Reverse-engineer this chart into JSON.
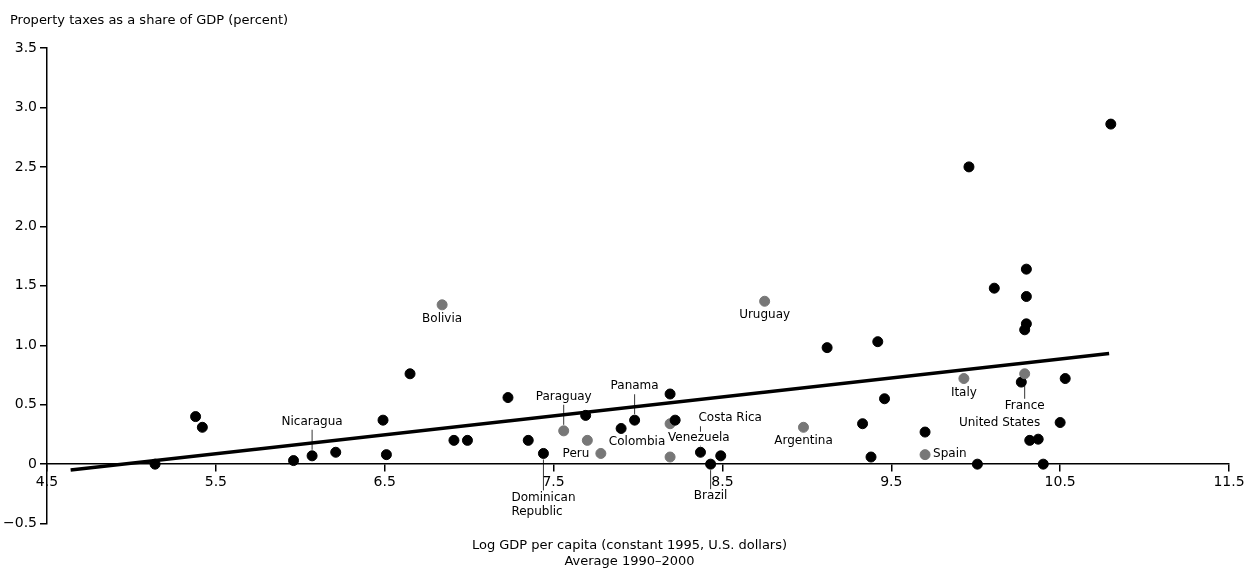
{
  "chart_data": {
    "type": "scatter",
    "ylabel": "Property taxes as a share of GDP (percent)",
    "xlabel": "Log GDP per capita (constant 1995, U.S. dollars)",
    "xlim": [
      4.5,
      11.5
    ],
    "xticks": [
      4.5,
      5.5,
      6.5,
      7.5,
      8.5,
      9.5,
      10.5,
      11.5
    ],
    "ylim": [
      -0.5,
      3.5
    ],
    "yticks": [
      {
        "value": -0.5,
        "label": "−0.5"
      },
      0,
      {
        "value": 0.5,
        "label": "0.5"
      },
      {
        "value": 1,
        "label": "1.0"
      },
      {
        "value": 1.5,
        "label": "1.5"
      },
      {
        "value": 2,
        "label": "2.0"
      },
      {
        "value": 2.5,
        "label": "2.5"
      },
      {
        "value": 3,
        "label": "3.0"
      },
      {
        "value": 3.5,
        "label": "3.5"
      }
    ],
    "grid": false,
    "legend": false,
    "series": [
      {
        "marker": "circle",
        "x": [
          5.14,
          5.38,
          5.42,
          5.96,
          6.07,
          6.21,
          6.49,
          6.51,
          6.65,
          6.84,
          6.91,
          6.99,
          7.23,
          7.35,
          7.44,
          7.56,
          7.69,
          7.7,
          7.78,
          7.9,
          7.98,
          8.19,
          8.19,
          8.22,
          8.19,
          8.37,
          8.43,
          8.49,
          8.75,
          8.98,
          9.12,
          9.33,
          9.38,
          9.42,
          9.46,
          9.7,
          9.7,
          9.93,
          9.96,
          10.01,
          10.11,
          10.27,
          10.29,
          10.29,
          10.3,
          10.3,
          10.3,
          10.32,
          10.37,
          10.4,
          10.5,
          10.53,
          10.8
        ],
        "values": [
          0.0,
          0.4,
          0.31,
          0.03,
          0.07,
          0.1,
          0.37,
          0.08,
          0.76,
          1.34,
          0.2,
          0.2,
          0.56,
          0.2,
          0.09,
          0.28,
          0.41,
          0.2,
          0.09,
          0.3,
          0.37,
          0.06,
          0.34,
          0.37,
          0.59,
          0.1,
          0.0,
          0.07,
          1.37,
          0.31,
          0.98,
          0.34,
          0.06,
          1.03,
          0.55,
          0.27,
          0.08,
          0.72,
          2.5,
          0.0,
          1.48,
          0.69,
          0.76,
          1.13,
          1.18,
          1.41,
          1.64,
          0.2,
          0.21,
          0.0,
          0.35,
          0.72,
          2.86
        ],
        "colors": [
          "#000000",
          "#000000",
          "#000000",
          "#000000",
          "#000000",
          "#000000",
          "#000000",
          "#000000",
          "#000000",
          "#777777",
          "#000000",
          "#000000",
          "#000000",
          "#000000",
          "#000000",
          "#777777",
          "#000000",
          "#777777",
          "#777777",
          "#000000",
          "#000000",
          "#777777",
          "#777777",
          "#000000",
          "#000000",
          "#000000",
          "#000000",
          "#000000",
          "#777777",
          "#777777",
          "#000000",
          "#000000",
          "#000000",
          "#000000",
          "#000000",
          "#000000",
          "#777777",
          "#777777",
          "#000000",
          "#000000",
          "#000000",
          "#000000",
          "#777777",
          "#000000",
          "#000000",
          "#000000",
          "#000000",
          "#000000",
          "#000000",
          "#000000",
          "#000000",
          "#000000",
          "#000000"
        ]
      },
      {
        "type": "line",
        "x": [
          4.64,
          10.79
        ],
        "values": [
          -0.05,
          0.93
        ],
        "color": "#000000"
      }
    ],
    "annotations": [
      {
        "text": "Bolivia",
        "x": 6.84,
        "y": 1.34
      },
      {
        "text": "Uruguay",
        "x": 8.75,
        "y": 1.37
      },
      {
        "text": "Nicaragua",
        "x": 6.07,
        "y": 0.07
      },
      {
        "text": "Paraguay",
        "x": 7.56,
        "y": 0.28
      },
      {
        "text": "Peru",
        "x": 7.7,
        "y": 0.2
      },
      {
        "text": "Colombia",
        "x": 7.78,
        "y": 0.09
      },
      {
        "text": "Dominican Republic",
        "x": 7.44,
        "y": 0.09
      },
      {
        "text": "Panama",
        "x": 7.98,
        "y": 0.37
      },
      {
        "text": "Venezuela",
        "x": 8.19,
        "y": 0.34
      },
      {
        "text": "Costa Rica",
        "x": 8.37,
        "y": 0.1
      },
      {
        "text": "Brazil",
        "x": 8.43,
        "y": 0.0
      },
      {
        "text": "Argentina",
        "x": 8.98,
        "y": 0.31
      },
      {
        "text": "Italy",
        "x": 9.93,
        "y": 0.72
      },
      {
        "text": "France",
        "x": 10.29,
        "y": 0.76
      },
      {
        "text": "Spain",
        "x": 9.7,
        "y": 0.08
      },
      {
        "text": "United States",
        "x": 10.37,
        "y": 0.21
      },
      "Average 1990–2000"
    ]
  }
}
